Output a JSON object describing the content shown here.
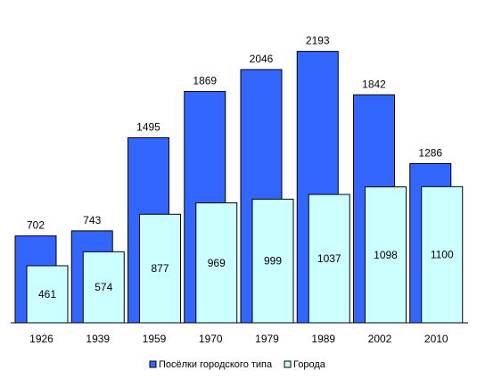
{
  "chart_data": {
    "type": "bar",
    "title": "",
    "xlabel": "",
    "ylabel": "",
    "categories": [
      "1926",
      "1939",
      "1959",
      "1970",
      "1979",
      "1989",
      "2002",
      "2010"
    ],
    "series": [
      {
        "name": "Посёлки городского типа",
        "color": "#3366ff",
        "values": [
          702,
          743,
          1495,
          1869,
          2046,
          2193,
          1842,
          1286
        ]
      },
      {
        "name": "Города",
        "color": "#ccffff",
        "values": [
          461,
          574,
          877,
          969,
          999,
          1037,
          1098,
          1100
        ]
      }
    ],
    "ylim": [
      0,
      2400
    ],
    "grid": false,
    "legend_position": "bottom"
  }
}
